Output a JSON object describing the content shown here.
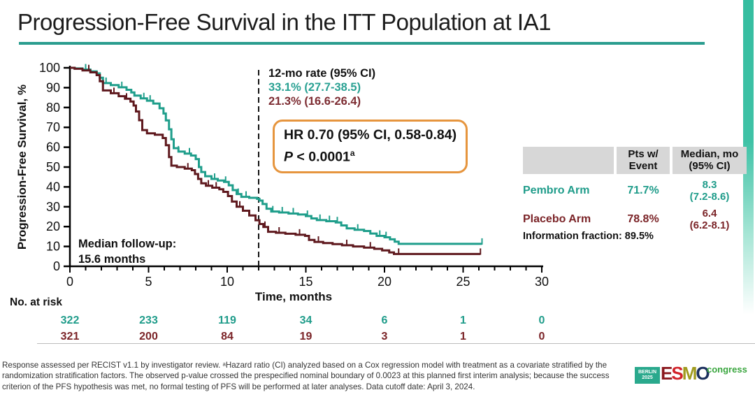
{
  "title": "Progression-Free Survival in the ITT Population at IA1",
  "annotations": {
    "rate_header": "12-mo rate (95% CI)",
    "rate_pembro": "33.1% (27.7-38.5)",
    "rate_placebo": "21.3% (16.6-26.4)",
    "hr_text": "HR 0.70 (95% CI, 0.58-0.84)",
    "p_label": "P",
    "p_value": " < 0.0001",
    "p_sup": "a",
    "median_followup": "Median follow-up:\n15.6 months"
  },
  "summary_table": {
    "col_arm": "",
    "col_events": "Pts w/\nEvent",
    "col_median": "Median, mo\n(95% CI)",
    "rows": [
      {
        "arm": "Pembro Arm",
        "events": "71.7%",
        "median": "8.3\n(7.2-8.6)"
      },
      {
        "arm": "Placebo Arm",
        "events": "78.8%",
        "median": "6.4\n(6.2-8.1)"
      }
    ],
    "info_fraction": "Information fraction: 89.5%"
  },
  "at_risk": {
    "label": "No. at risk",
    "times": [
      0,
      5,
      10,
      15,
      20,
      25,
      30
    ],
    "rows": [
      {
        "arm": "Pembro Arm",
        "color": "#1f9c8a",
        "counts": [
          "322",
          "233",
          "119",
          "34",
          "6",
          "1",
          "0"
        ]
      },
      {
        "arm": "Placebo Arm",
        "color": "#7b2428",
        "counts": [
          "321",
          "200",
          "84",
          "19",
          "3",
          "1",
          "0"
        ]
      }
    ]
  },
  "footnote": "Response assessed per RECIST v1.1 by investigator review. ᵃHazard ratio (CI) analyzed based on a Cox regression model with treatment as a covariate stratified by the randomization stratification factors. The observed p-value crossed the prespecified nominal boundary of 0.0023 at this planned first interim analysis; because the success criterion of the PFS hypothesis was met, no formal testing of PFS will be performed at later analyses. Data cutoff date: April 3, 2024.",
  "logo": {
    "badge": "BERLIN\n2025",
    "letters": [
      "E",
      "S",
      "M",
      "O"
    ],
    "letter_colors": [
      "#8b1a1f",
      "#d2232a",
      "#a09b1e",
      "#1b2f5e"
    ],
    "suffix": "congress"
  },
  "colors": {
    "accent_teal": "#2a9d8f",
    "hr_box_border": "#e6953e",
    "table_header_bg": "#d7d7d7"
  },
  "chart_data": {
    "type": "line",
    "subtype": "kaplan-meier-step",
    "title": "",
    "xlabel": "Time, months",
    "ylabel": "Progression-Free Survival, %",
    "xlim": [
      0,
      30
    ],
    "ylim": [
      0,
      100
    ],
    "x_major_ticks": [
      0,
      5,
      10,
      15,
      20,
      25,
      30
    ],
    "x_minor_tick_interval": 1,
    "y_tick_interval": 10,
    "reference_line_x": 12,
    "grid": false,
    "series": [
      {
        "name": "Pembro Arm",
        "color": "#1f9e8b",
        "median_months": 8.3,
        "rate_12mo_pct": 33.1,
        "points": [
          [
            0,
            100
          ],
          [
            0.3,
            99.7
          ],
          [
            0.8,
            99.1
          ],
          [
            1.3,
            98.2
          ],
          [
            1.7,
            97.2
          ],
          [
            1.9,
            95
          ],
          [
            2.1,
            92.3
          ],
          [
            2.6,
            91.3
          ],
          [
            3.1,
            90.2
          ],
          [
            3.6,
            88.9
          ],
          [
            3.9,
            87.6
          ],
          [
            4.1,
            86
          ],
          [
            4.5,
            84.6
          ],
          [
            4.9,
            83.4
          ],
          [
            5.3,
            82
          ],
          [
            5.7,
            79.6
          ],
          [
            5.95,
            77
          ],
          [
            6.1,
            73.5
          ],
          [
            6.3,
            69
          ],
          [
            6.45,
            64
          ],
          [
            6.6,
            59.5
          ],
          [
            6.9,
            57.8
          ],
          [
            7.3,
            56.8
          ],
          [
            7.7,
            55.8
          ],
          [
            8.0,
            54
          ],
          [
            8.2,
            50
          ],
          [
            8.35,
            47.5
          ],
          [
            8.6,
            45.4
          ],
          [
            9.0,
            44
          ],
          [
            9.4,
            43.2
          ],
          [
            9.8,
            42.5
          ],
          [
            10.1,
            40.8
          ],
          [
            10.35,
            38.4
          ],
          [
            10.6,
            36.4
          ],
          [
            10.9,
            35
          ],
          [
            11.4,
            34.5
          ],
          [
            11.9,
            34
          ],
          [
            12.05,
            33.1
          ],
          [
            12.25,
            31.4
          ],
          [
            12.5,
            29
          ],
          [
            12.8,
            27.6
          ],
          [
            13.3,
            27.1
          ],
          [
            13.9,
            26.6
          ],
          [
            14.5,
            26.1
          ],
          [
            15.0,
            25.3
          ],
          [
            15.35,
            24.1
          ],
          [
            15.7,
            23.3
          ],
          [
            16.3,
            22.7
          ],
          [
            16.9,
            22.1
          ],
          [
            17.25,
            20.6
          ],
          [
            17.6,
            19.1
          ],
          [
            18.1,
            18.4
          ],
          [
            18.7,
            17.8
          ],
          [
            19.1,
            16.5
          ],
          [
            19.5,
            15.3
          ],
          [
            20.0,
            14.6
          ],
          [
            20.35,
            13.6
          ],
          [
            20.65,
            12.4
          ],
          [
            20.9,
            11.3
          ],
          [
            26.2,
            11.3
          ]
        ],
        "censor_times": [
          1.0,
          2.3,
          3.3,
          4.7,
          5.1,
          6.9,
          7.6,
          9.2,
          9.9,
          10.7,
          11.2,
          12.9,
          13.5,
          14.2,
          15.1,
          15.9,
          16.5,
          17.0,
          18.3,
          19.7,
          20.1,
          26.2
        ]
      },
      {
        "name": "Placebo Arm",
        "color": "#5f191e",
        "median_months": 6.4,
        "rate_12mo_pct": 21.3,
        "points": [
          [
            0,
            100
          ],
          [
            0.3,
            99.5
          ],
          [
            0.8,
            98.7
          ],
          [
            1.3,
            97.7
          ],
          [
            1.7,
            96.3
          ],
          [
            1.9,
            93.2
          ],
          [
            2.1,
            88.6
          ],
          [
            2.6,
            87.2
          ],
          [
            3.1,
            85.7
          ],
          [
            3.5,
            84.4
          ],
          [
            3.85,
            83
          ],
          [
            4.05,
            81
          ],
          [
            4.2,
            78
          ],
          [
            4.4,
            73.6
          ],
          [
            4.6,
            68.6
          ],
          [
            4.9,
            67
          ],
          [
            5.4,
            66.3
          ],
          [
            5.9,
            64.6
          ],
          [
            6.1,
            61
          ],
          [
            6.3,
            55
          ],
          [
            6.45,
            50.7
          ],
          [
            6.8,
            50
          ],
          [
            7.3,
            49.2
          ],
          [
            7.75,
            48.4
          ],
          [
            7.95,
            46.5
          ],
          [
            8.15,
            44
          ],
          [
            8.35,
            41.8
          ],
          [
            8.65,
            40.6
          ],
          [
            9.05,
            39.6
          ],
          [
            9.5,
            38.8
          ],
          [
            9.75,
            37.5
          ],
          [
            10.05,
            35.4
          ],
          [
            10.3,
            32.6
          ],
          [
            10.6,
            30
          ],
          [
            11.0,
            28
          ],
          [
            11.4,
            25.6
          ],
          [
            11.8,
            23.2
          ],
          [
            12.05,
            21.3
          ],
          [
            12.3,
            19.8
          ],
          [
            12.6,
            17.4
          ],
          [
            13.1,
            16.9
          ],
          [
            13.7,
            16.4
          ],
          [
            14.35,
            15.9
          ],
          [
            14.95,
            15.3
          ],
          [
            15.2,
            13.3
          ],
          [
            15.55,
            12.3
          ],
          [
            16.1,
            11.7
          ],
          [
            16.7,
            11.2
          ],
          [
            17.3,
            10.6
          ],
          [
            18.0,
            10
          ],
          [
            18.7,
            9.4
          ],
          [
            19.35,
            8.8
          ],
          [
            19.85,
            8
          ],
          [
            20.3,
            7
          ],
          [
            20.6,
            6.2
          ],
          [
            26.1,
            6.2
          ]
        ],
        "censor_times": [
          1.2,
          2.8,
          3.6,
          7.5,
          8.8,
          9.3,
          10.8,
          12.4,
          13.3,
          14.6,
          15.8,
          17.6,
          19.1,
          20.9,
          26.1
        ]
      }
    ]
  }
}
